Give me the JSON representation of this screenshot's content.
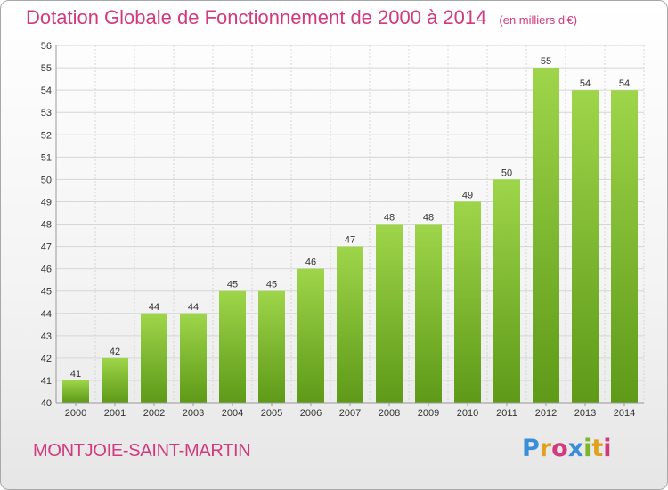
{
  "chart_data": {
    "type": "bar",
    "title": "Dotation Globale de Fonctionnement de 2000 à 2014",
    "subtitle": "(en milliers d'€)",
    "categories": [
      "2000",
      "2001",
      "2002",
      "2003",
      "2004",
      "2005",
      "2006",
      "2007",
      "2008",
      "2009",
      "2010",
      "2011",
      "2012",
      "2013",
      "2014"
    ],
    "values": [
      41,
      42,
      44,
      44,
      45,
      45,
      46,
      47,
      48,
      48,
      49,
      50,
      55,
      54,
      54
    ],
    "ylim": [
      40,
      56
    ],
    "yticks": [
      40,
      41,
      42,
      43,
      44,
      45,
      46,
      47,
      48,
      49,
      50,
      51,
      52,
      53,
      54,
      55,
      56
    ],
    "grid": true,
    "bar_color": "#7cb62a",
    "bar_color_top": "#9ed54a",
    "bar_color_bottom": "#5e9a18"
  },
  "footer": {
    "place_name": "MONTJOIE-SAINT-MARTIN",
    "logo_letters": [
      "P",
      "r",
      "o",
      "x",
      "i",
      "t",
      "i"
    ],
    "logo_colors": [
      "#3a8ed8",
      "#e0a020",
      "#d23a7d",
      "#3a8ed8",
      "#7cb62a",
      "#e0a020",
      "#d23a7d"
    ]
  },
  "colors": {
    "accent": "#d23a7d"
  }
}
